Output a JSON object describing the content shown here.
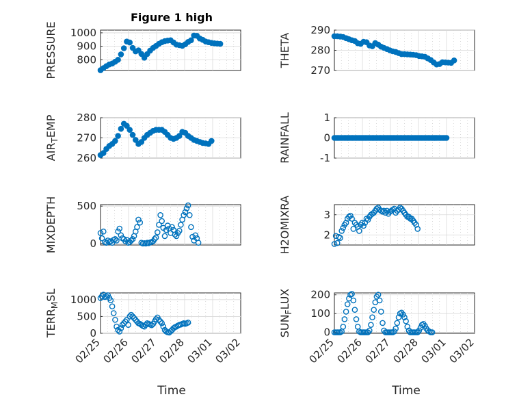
{
  "figure": {
    "title": "Figure 1 high",
    "xlabel_left": "Time",
    "xlabel_right": "Time",
    "date_ticks": [
      "02/25",
      "02/26",
      "02/27",
      "02/28",
      "03/01",
      "03/02"
    ]
  },
  "style": {
    "marker_color": "#0072BD",
    "axis_color": "#262626",
    "grid_color": "#d9d9d9"
  },
  "chart_data": [
    {
      "type": "scatter",
      "name": "pressure",
      "ylabel": "PRESSURE",
      "ylim": [
        720,
        1020
      ],
      "yticks": [
        800,
        900,
        1000
      ],
      "filled": true,
      "x_start": "02/25",
      "x_step_hours": 2.5,
      "xlim": [
        "02/25",
        "03/02"
      ],
      "grid": true,
      "values": [
        722,
        738,
        752,
        765,
        772,
        785,
        800,
        840,
        885,
        935,
        928,
        888,
        862,
        870,
        843,
        815,
        842,
        868,
        888,
        902,
        918,
        930,
        938,
        942,
        945,
        928,
        912,
        908,
        903,
        915,
        932,
        945,
        980,
        978,
        958,
        948,
        935,
        930,
        925,
        922,
        920,
        918
      ]
    },
    {
      "type": "scatter",
      "name": "theta",
      "ylabel": "THETA",
      "ylim": [
        270,
        290
      ],
      "yticks": [
        270,
        280,
        290
      ],
      "filled": true,
      "x_start": "02/25",
      "x_step_hours": 2.5,
      "xlim": [
        "02/25",
        "03/02"
      ],
      "grid": true,
      "values": [
        287.0,
        287.0,
        286.8,
        286.6,
        286.0,
        285.5,
        285.0,
        284.6,
        283.5,
        283.2,
        284.2,
        284.0,
        282.4,
        282.0,
        283.6,
        282.8,
        281.8,
        281.2,
        280.6,
        280.0,
        279.5,
        279.2,
        278.6,
        278.1,
        278.1,
        278.0,
        277.9,
        277.8,
        277.6,
        277.2,
        277.0,
        276.8,
        276.0,
        275.2,
        274.0,
        273.0,
        273.2,
        274.1,
        274.0,
        273.9,
        273.8,
        275.0
      ]
    },
    {
      "type": "scatter",
      "name": "air_temp",
      "ylabel": "AIR_TEMP",
      "ylim": [
        260,
        280
      ],
      "yticks": [
        260,
        270,
        280
      ],
      "filled": true,
      "x_start": "02/25",
      "x_step_hours": 2.5,
      "xlim": [
        "02/25",
        "03/02"
      ],
      "grid": true,
      "values": [
        261.5,
        262.5,
        264.5,
        266.0,
        267.0,
        268.5,
        271.0,
        274.5,
        277.0,
        276.0,
        274.0,
        271.5,
        269.0,
        267.0,
        268.0,
        270.0,
        271.5,
        272.5,
        273.5,
        274.0,
        274.0,
        274.0,
        273.0,
        271.5,
        270.0,
        269.5,
        270.0,
        271.0,
        273.0,
        272.5,
        271.0,
        270.0,
        269.0,
        268.5,
        268.0,
        267.5,
        267.3,
        267.0,
        268.5
      ]
    },
    {
      "type": "scatter",
      "name": "rainfall",
      "ylabel": "RAINFALL",
      "ylim": [
        -1,
        1
      ],
      "yticks": [
        -1,
        0,
        1
      ],
      "filled": true,
      "x_start": "02/25",
      "x_step_hours": 1.2,
      "xlim": [
        "02/25",
        "03/02"
      ],
      "grid": true,
      "values": [
        0,
        0,
        0,
        0,
        0,
        0,
        0,
        0,
        0,
        0,
        0,
        0,
        0,
        0,
        0,
        0,
        0,
        0,
        0,
        0,
        0,
        0,
        0,
        0,
        0,
        0,
        0,
        0,
        0,
        0,
        0,
        0,
        0,
        0,
        0,
        0,
        0,
        0,
        0,
        0,
        0,
        0,
        0,
        0,
        0,
        0,
        0,
        0,
        0,
        0,
        0,
        0,
        0,
        0,
        0,
        0,
        0,
        0,
        0,
        0,
        0,
        0,
        0,
        0,
        0,
        0,
        0,
        0,
        0,
        0,
        0,
        0,
        0,
        0,
        0,
        0,
        0,
        0,
        0,
        0,
        0
      ]
    },
    {
      "type": "scatter",
      "name": "mixdepth",
      "ylabel": "MIXDEPTH",
      "ylim": [
        -20,
        520
      ],
      "yticks": [
        0,
        500
      ],
      "filled": false,
      "x_start": "02/25",
      "x_step_hours": 1.25,
      "xlim": [
        "02/25",
        "03/02"
      ],
      "grid": true,
      "values": [
        140,
        70,
        160,
        20,
        10,
        40,
        20,
        30,
        10,
        50,
        60,
        40,
        160,
        200,
        110,
        70,
        60,
        30,
        50,
        10,
        20,
        40,
        60,
        100,
        160,
        220,
        320,
        280,
        10,
        0,
        5,
        0,
        10,
        5,
        15,
        20,
        30,
        60,
        80,
        150,
        250,
        380,
        300,
        210,
        100,
        180,
        240,
        200,
        140,
        220,
        180,
        120,
        100,
        140,
        170,
        250,
        320,
        380,
        420,
        470,
        510,
        380,
        220,
        90,
        40,
        110,
        70,
        10
      ]
    },
    {
      "type": "scatter",
      "name": "h2omixra",
      "ylabel": "H2OMIXRA",
      "ylim": [
        1.5,
        3.5
      ],
      "yticks": [
        2,
        3
      ],
      "filled": false,
      "x_start": "02/25",
      "x_step_hours": 1.25,
      "xlim": [
        "02/25",
        "03/02"
      ],
      "grid": true,
      "values": [
        1.55,
        1.95,
        1.6,
        1.9,
        1.85,
        2.2,
        2.35,
        2.5,
        2.6,
        2.8,
        2.9,
        2.95,
        2.8,
        2.3,
        2.6,
        2.5,
        2.4,
        2.2,
        2.5,
        2.6,
        2.45,
        2.6,
        2.8,
        2.75,
        2.9,
        3.0,
        3.05,
        3.1,
        3.2,
        3.3,
        3.35,
        3.25,
        3.2,
        3.15,
        3.2,
        3.1,
        3.2,
        3.05,
        3.15,
        3.2,
        3.25,
        3.3,
        3.1,
        3.2,
        3.25,
        3.35,
        3.3,
        3.2,
        3.1,
        3.0,
        2.9,
        2.9,
        2.8,
        2.8,
        2.7,
        2.6,
        2.5,
        2.3
      ]
    },
    {
      "type": "scatter",
      "name": "terr_msl",
      "ylabel": "TERR_MSL",
      "ylim": [
        0,
        1200
      ],
      "yticks": [
        0,
        500,
        1000
      ],
      "filled": false,
      "x_start": "02/25",
      "x_step_hours": 1.25,
      "xlim": [
        "02/25",
        "03/02"
      ],
      "grid": true,
      "values": [
        1050,
        1100,
        1150,
        1080,
        1100,
        1130,
        1050,
        980,
        800,
        600,
        400,
        200,
        100,
        50,
        150,
        250,
        300,
        350,
        400,
        250,
        500,
        550,
        500,
        450,
        400,
        350,
        300,
        280,
        250,
        220,
        200,
        250,
        300,
        280,
        260,
        240,
        280,
        350,
        420,
        470,
        400,
        350,
        300,
        200,
        100,
        50,
        30,
        20,
        60,
        100,
        150,
        180,
        200,
        230,
        250,
        260,
        280,
        300,
        280,
        300,
        320
      ]
    },
    {
      "type": "scatter",
      "name": "sun_flux",
      "ylabel": "SUN_FLUX",
      "ylim": [
        -5,
        210
      ],
      "yticks": [
        0,
        100,
        200
      ],
      "filled": false,
      "x_start": "02/25",
      "x_step_hours": 1.25,
      "xlim": [
        "02/25",
        "03/02"
      ],
      "grid": true,
      "values": [
        0,
        0,
        0,
        0,
        0,
        5,
        30,
        70,
        110,
        150,
        180,
        200,
        205,
        170,
        120,
        70,
        30,
        5,
        0,
        0,
        0,
        0,
        0,
        0,
        10,
        40,
        80,
        120,
        160,
        190,
        200,
        170,
        110,
        50,
        10,
        0,
        0,
        0,
        0,
        0,
        0,
        5,
        20,
        50,
        80,
        100,
        105,
        95,
        80,
        60,
        30,
        10,
        0,
        0,
        0,
        0,
        0,
        0,
        10,
        25,
        40,
        45,
        35,
        20,
        10,
        5,
        0,
        0
      ]
    }
  ]
}
